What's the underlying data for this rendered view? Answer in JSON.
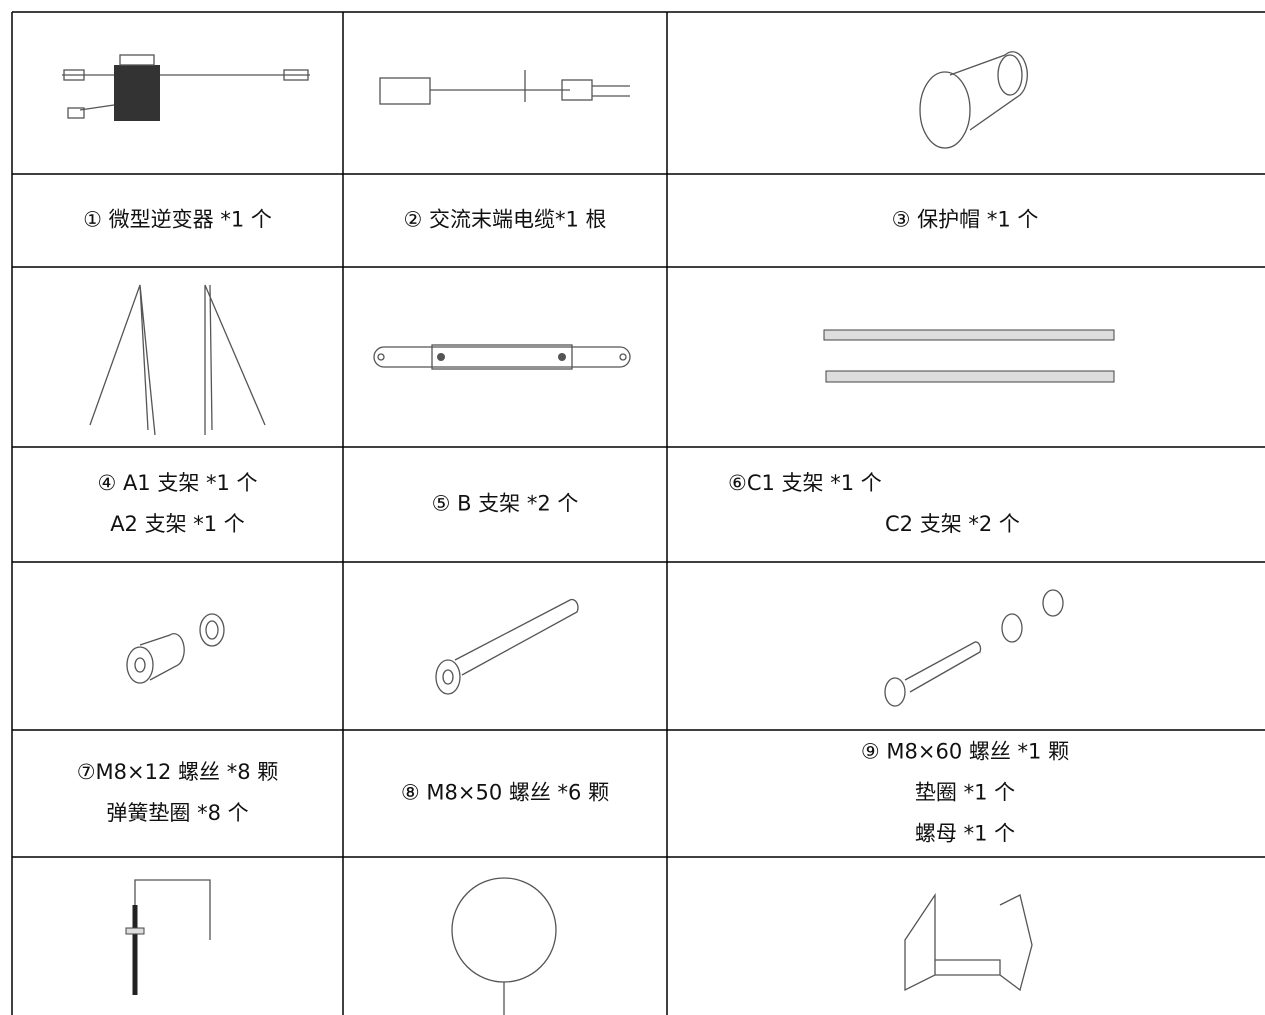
{
  "table": {
    "label_rows": [
      [
        [
          "① 微型逆变器 *1 个"
        ],
        [
          "② 交流末端电缆*1 根"
        ],
        [
          "③ 保护帽 *1 个"
        ]
      ],
      [
        [
          "④ A1 支架 *1 个",
          "A2 支架 *1 个"
        ],
        [
          "⑤ B 支架 *2 个"
        ],
        [
          "⑥C1 支架 *1 个",
          "C2 支架 *2 个"
        ]
      ],
      [
        [
          "⑦M8×12 螺丝 *8 颗",
          "弹簧垫圈 *8 个"
        ],
        [
          "⑧ M8×50 螺丝 *6 颗"
        ],
        [
          "⑨ M8×60 螺丝 *1 颗",
          "垫圈 *1 个",
          "螺母 *1 个"
        ]
      ]
    ]
  }
}
